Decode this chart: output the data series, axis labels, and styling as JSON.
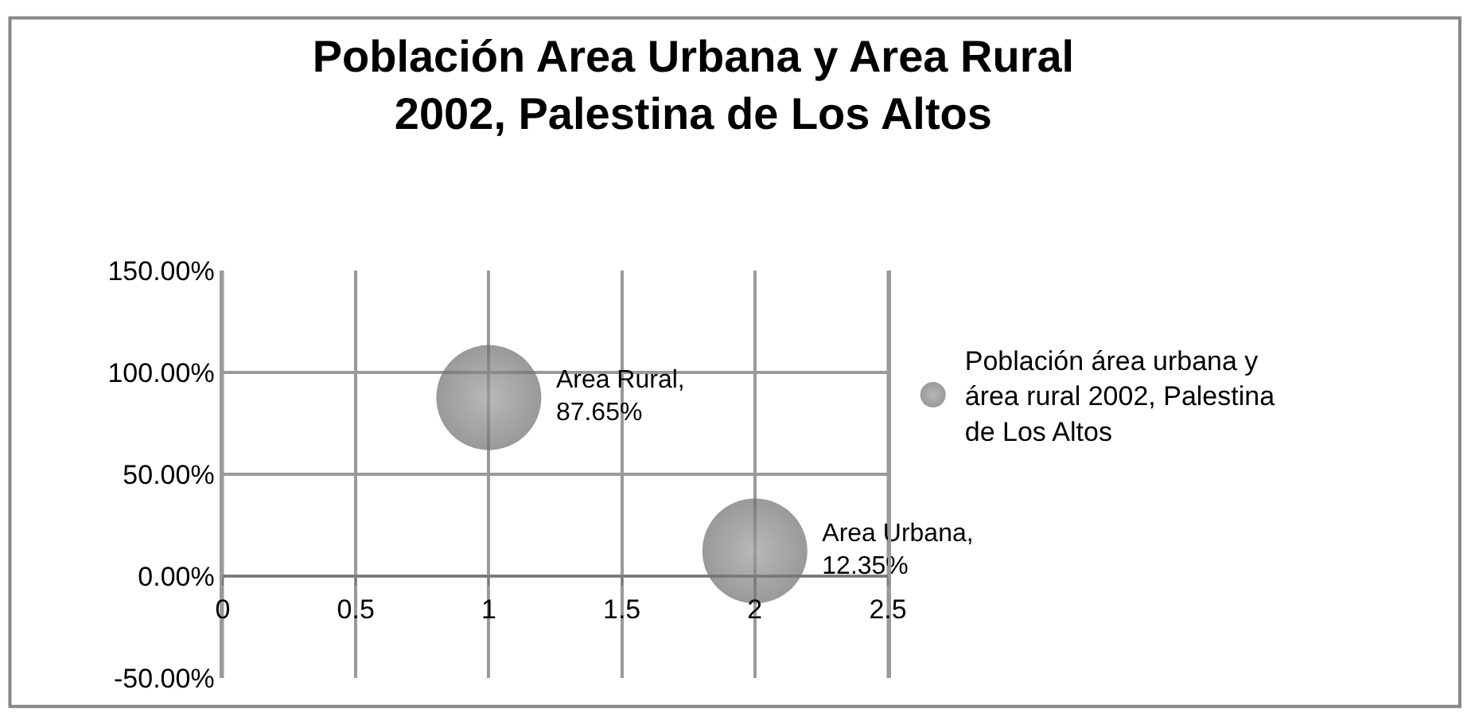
{
  "chart_data": {
    "type": "bubble",
    "title": "Población Area Urbana y Area Rural 2002, Palestina de Los Altos",
    "x": [
      1,
      2
    ],
    "series": [
      {
        "name": "Población área urbana y área rural 2002, Palestina de Los Altos",
        "color": "#6e6e6e",
        "values": [
          87.65,
          12.35
        ],
        "sizes": [
          1,
          1
        ],
        "value_labels": [
          "Area Rural, 87.65%",
          "Area Urbana, 12.35%"
        ]
      }
    ],
    "xlim": [
      0,
      2.5
    ],
    "xticks": [
      0,
      0.5,
      1,
      1.5,
      2,
      2.5
    ],
    "ylim": [
      -50,
      150
    ],
    "yticks": [
      {
        "value": -50,
        "label": "-50.00%"
      },
      {
        "value": 0,
        "label": "0.00%"
      },
      {
        "value": 50,
        "label": "50.00%"
      },
      {
        "value": 100,
        "label": "100.00%"
      },
      {
        "value": 150,
        "label": "150.00%"
      }
    ],
    "grid": true,
    "legend": "right"
  }
}
